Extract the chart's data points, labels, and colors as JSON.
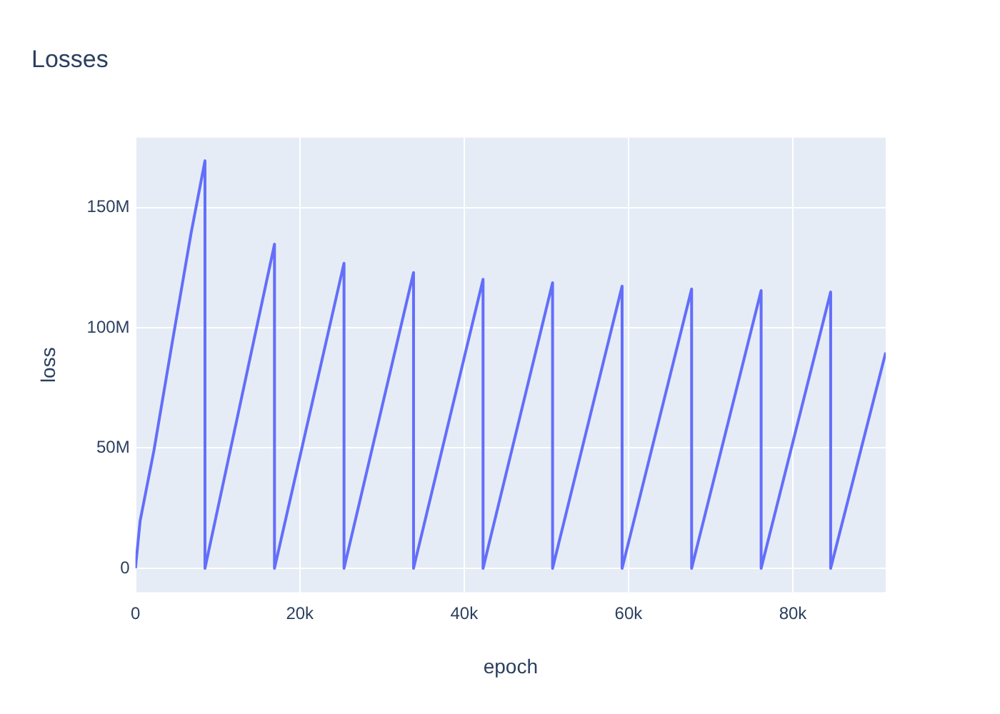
{
  "chart_data": {
    "type": "line",
    "title": "Losses",
    "xlabel": "epoch",
    "ylabel": "loss",
    "x": [
      0,
      560,
      2250,
      4500,
      6780,
      8460,
      8460,
      16920,
      16920,
      25380,
      25380,
      33840,
      33840,
      42300,
      42300,
      50760,
      50760,
      59220,
      59220,
      67680,
      67680,
      76140,
      76140,
      84600,
      84600,
      91300
    ],
    "series": [
      {
        "color": "#636efa",
        "values": [
          0,
          19500000,
          49000000,
          94300000,
          139500000,
          169400000,
          0,
          134700000,
          0,
          126800000,
          0,
          122900000,
          0,
          120100000,
          0,
          118700000,
          0,
          117300000,
          0,
          116100000,
          0,
          115400000,
          0,
          114800000,
          0,
          89700000
        ]
      }
    ],
    "xlim": [
      0,
      91300
    ],
    "ylim": [
      -10000000,
      179000000
    ],
    "xticks": [
      0,
      {
        "value": 20000,
        "label": "20k"
      },
      {
        "value": 40000,
        "label": "40k"
      },
      {
        "value": 60000,
        "label": "60k"
      },
      {
        "value": 80000,
        "label": "80k"
      }
    ],
    "yticks": [
      0,
      {
        "value": 50000000,
        "label": "50M"
      },
      {
        "value": 100000000,
        "label": "100M"
      },
      {
        "value": 150000000,
        "label": "150M"
      }
    ],
    "grid": true,
    "legend": false,
    "marker": "none",
    "line_style": "solid"
  }
}
